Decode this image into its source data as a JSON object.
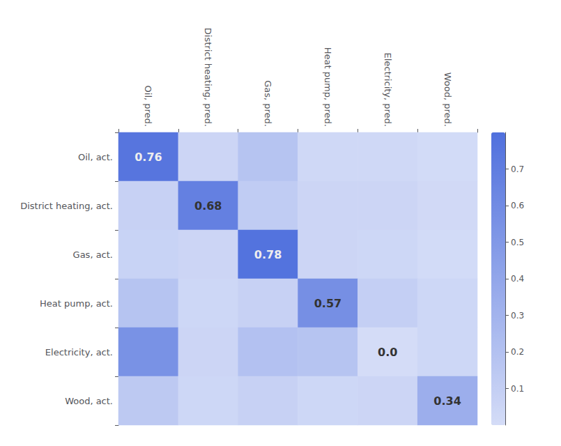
{
  "chart_data": {
    "type": "heatmap",
    "categories": [
      "Oil, pred.",
      "District heating, pred.",
      "Gas, pred.",
      "Heat pump, pred.",
      "Electricity, pred.",
      "Wood, pred."
    ],
    "y_categories": [
      "Oil, act.",
      "District heating, act.",
      "Gas, act.",
      "Heat pump, act.",
      "Electricity, act.",
      "Wood, act."
    ],
    "values": [
      [
        0.76,
        0.05,
        0.18,
        0.03,
        0.03,
        0.01
      ],
      [
        0.08,
        0.68,
        0.12,
        0.05,
        0.05,
        0.02
      ],
      [
        0.07,
        0.05,
        0.78,
        0.05,
        0.04,
        0.01
      ],
      [
        0.18,
        0.04,
        0.08,
        0.57,
        0.1,
        0.04
      ],
      [
        0.55,
        0.05,
        0.2,
        0.18,
        0.0,
        0.04
      ],
      [
        0.14,
        0.04,
        0.08,
        0.04,
        0.05,
        0.34
      ]
    ],
    "value_labels": [
      [
        "0.76",
        null,
        null,
        null,
        null,
        null
      ],
      [
        null,
        "0.68",
        null,
        null,
        null,
        null
      ],
      [
        null,
        null,
        "0.78",
        null,
        null,
        null
      ],
      [
        null,
        null,
        null,
        "0.57",
        null,
        null
      ],
      [
        null,
        null,
        null,
        null,
        "0.0",
        null
      ],
      [
        null,
        null,
        null,
        null,
        null,
        "0.34"
      ]
    ],
    "colorbar_range": [
      0.0,
      0.8
    ],
    "colorbar_ticks": [
      0.1,
      0.2,
      0.3,
      0.4,
      0.5,
      0.6,
      0.7
    ]
  }
}
